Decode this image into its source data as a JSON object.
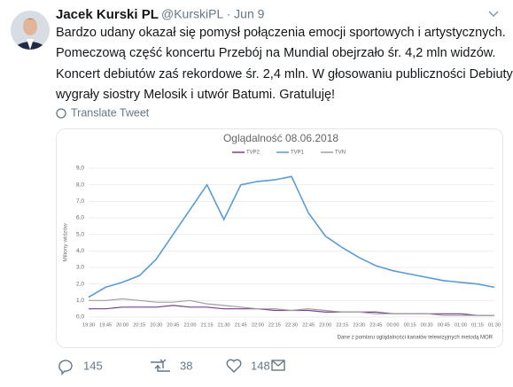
{
  "tweet": {
    "name": "Jacek Kurski PL",
    "handle_date": "@KurskiPL · Jun 9",
    "text_lines": [
      "Bardzo udany okazał się pomysł połączenia emocji sportowych i artystycznych.",
      "Pomeczową część koncertu Przebój na Mundial obejrzało śr. 4,2 mln widzów.",
      "Koncert debiutów zaś rekordowe śr. 2,4 mln. W głosowaniu publiczności Debiuty",
      "wygrały siostry Melosik i utwór Batumi. Gratuluję!"
    ],
    "translate": "Translate Tweet",
    "replies": "145",
    "retweets": "38",
    "likes": "148"
  },
  "chart_data": {
    "type": "line",
    "title": "Oglądalność 08.06.2018",
    "y_label": "Miliony widzów",
    "note": "Dane z pomiaru oglądalności kanałów telewizyjnych metodą MOR",
    "categories": [
      "19:30",
      "19:45",
      "20:00",
      "20:15",
      "20:30",
      "20:45",
      "21:00",
      "21:15",
      "21:30",
      "21:45",
      "22:00",
      "22:15",
      "22:30",
      "22:45",
      "23:00",
      "23:15",
      "23:30",
      "23:45",
      "00:00",
      "00:15",
      "00:30",
      "00:45",
      "01:00",
      "01:15",
      "01:30"
    ],
    "series": [
      {
        "name": "TVP2",
        "color": "#7b3f8c",
        "values": [
          0.5,
          0.5,
          0.6,
          0.6,
          0.6,
          0.7,
          0.6,
          0.6,
          0.5,
          0.5,
          0.5,
          0.4,
          0.4,
          0.4,
          0.3,
          0.3,
          0.3,
          0.3,
          0.2,
          0.2,
          0.2,
          0.2,
          0.2,
          0.1,
          0.1
        ]
      },
      {
        "name": "TVP1",
        "color": "#5b9bd5",
        "values": [
          1.2,
          1.8,
          2.1,
          2.5,
          3.5,
          5.0,
          6.5,
          8.0,
          5.9,
          8.0,
          8.2,
          8.3,
          8.5,
          6.3,
          4.9,
          4.2,
          3.6,
          3.1,
          2.8,
          2.6,
          2.4,
          2.2,
          2.1,
          2.0,
          1.8
        ]
      },
      {
        "name": "TVN",
        "color": "#a0a0a0",
        "values": [
          1.0,
          1.0,
          1.1,
          1.0,
          0.9,
          0.9,
          1.0,
          0.8,
          0.7,
          0.6,
          0.5,
          0.5,
          0.4,
          0.5,
          0.4,
          0.3,
          0.3,
          0.2,
          0.2,
          0.2,
          0.2,
          0.1,
          0.1,
          0.1,
          0.1
        ]
      }
    ],
    "ylim": [
      0,
      9
    ],
    "yticks": [
      {
        "value": 0,
        "label": "0,0"
      },
      {
        "value": 1,
        "label": "1,0"
      },
      {
        "value": 2,
        "label": "2,0"
      },
      {
        "value": 3,
        "label": "3,0"
      },
      {
        "value": 4,
        "label": "4,0"
      },
      {
        "value": 5,
        "label": "5,0"
      },
      {
        "value": 6,
        "label": "6,0"
      },
      {
        "value": 7,
        "label": "7,0"
      },
      {
        "value": 8,
        "label": "8,0"
      },
      {
        "value": 9,
        "label": "9,0"
      }
    ],
    "grid": true
  }
}
